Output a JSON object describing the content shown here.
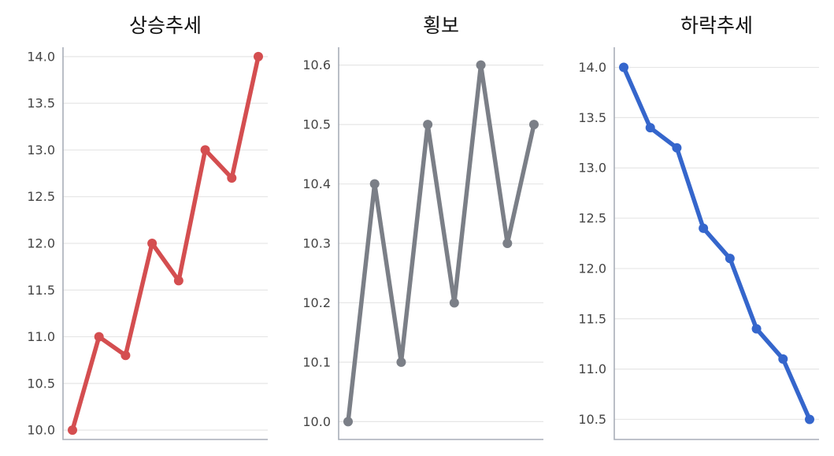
{
  "chart_data": [
    {
      "type": "line",
      "title": "상승추세",
      "color": "#d44e50",
      "x": [
        0,
        1,
        2,
        3,
        4,
        5,
        6,
        7
      ],
      "values": [
        10.0,
        11.0,
        10.8,
        12.0,
        11.6,
        13.0,
        12.7,
        14.0
      ],
      "ylim": [
        9.9,
        14.1
      ],
      "yticks": [
        10.0,
        10.5,
        11.0,
        11.5,
        12.0,
        12.5,
        13.0,
        13.5,
        14.0
      ],
      "ytick_labels": [
        "10.0",
        "10.5",
        "11.0",
        "11.5",
        "12.0",
        "12.5",
        "13.0",
        "13.5",
        "14.0"
      ],
      "grid": true,
      "xticks_visible": false
    },
    {
      "type": "line",
      "title": "횡보",
      "color": "#7b7f87",
      "x": [
        0,
        1,
        2,
        3,
        4,
        5,
        6,
        7
      ],
      "values": [
        10.0,
        10.4,
        10.1,
        10.5,
        10.2,
        10.6,
        10.3,
        10.5
      ],
      "ylim": [
        9.97,
        10.63
      ],
      "yticks": [
        10.0,
        10.1,
        10.2,
        10.3,
        10.4,
        10.5,
        10.6
      ],
      "ytick_labels": [
        "10.0",
        "10.1",
        "10.2",
        "10.3",
        "10.4",
        "10.5",
        "10.6"
      ],
      "grid": true,
      "xticks_visible": false
    },
    {
      "type": "line",
      "title": "하락추세",
      "color": "#3566cc",
      "x": [
        0,
        1,
        2,
        3,
        4,
        5,
        6,
        7
      ],
      "values": [
        14.0,
        13.4,
        13.2,
        12.4,
        12.1,
        11.4,
        11.1,
        10.5
      ],
      "ylim": [
        10.3,
        14.2
      ],
      "yticks": [
        10.5,
        11.0,
        11.5,
        12.0,
        12.5,
        13.0,
        13.5,
        14.0
      ],
      "ytick_labels": [
        "10.5",
        "11.0",
        "11.5",
        "12.0",
        "12.5",
        "13.0",
        "13.5",
        "14.0"
      ],
      "grid": true,
      "xticks_visible": false
    }
  ]
}
